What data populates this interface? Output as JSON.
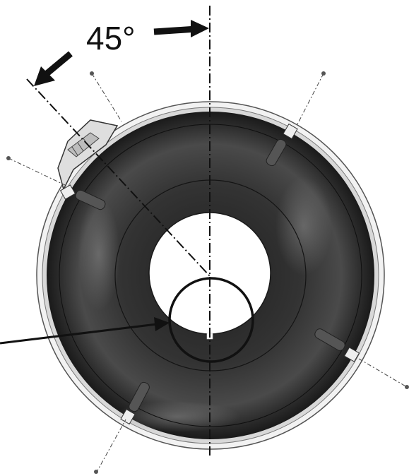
{
  "diagram": {
    "angle_label": "45°",
    "colors": {
      "line": "#111111",
      "bowl_dark": "#2b2b2b",
      "bowl_mid": "#3d3d3d",
      "bowl_highlight": "#6a6a6a",
      "rim": "#e6e6e6",
      "background": "#ffffff"
    },
    "parts": [
      "outer-rim",
      "bowl-interior",
      "center-hole",
      "connector-housing",
      "mounting-tabs",
      "vertical-centerline",
      "diagonal-centerline",
      "detail-circle",
      "pointer-arrow"
    ]
  }
}
